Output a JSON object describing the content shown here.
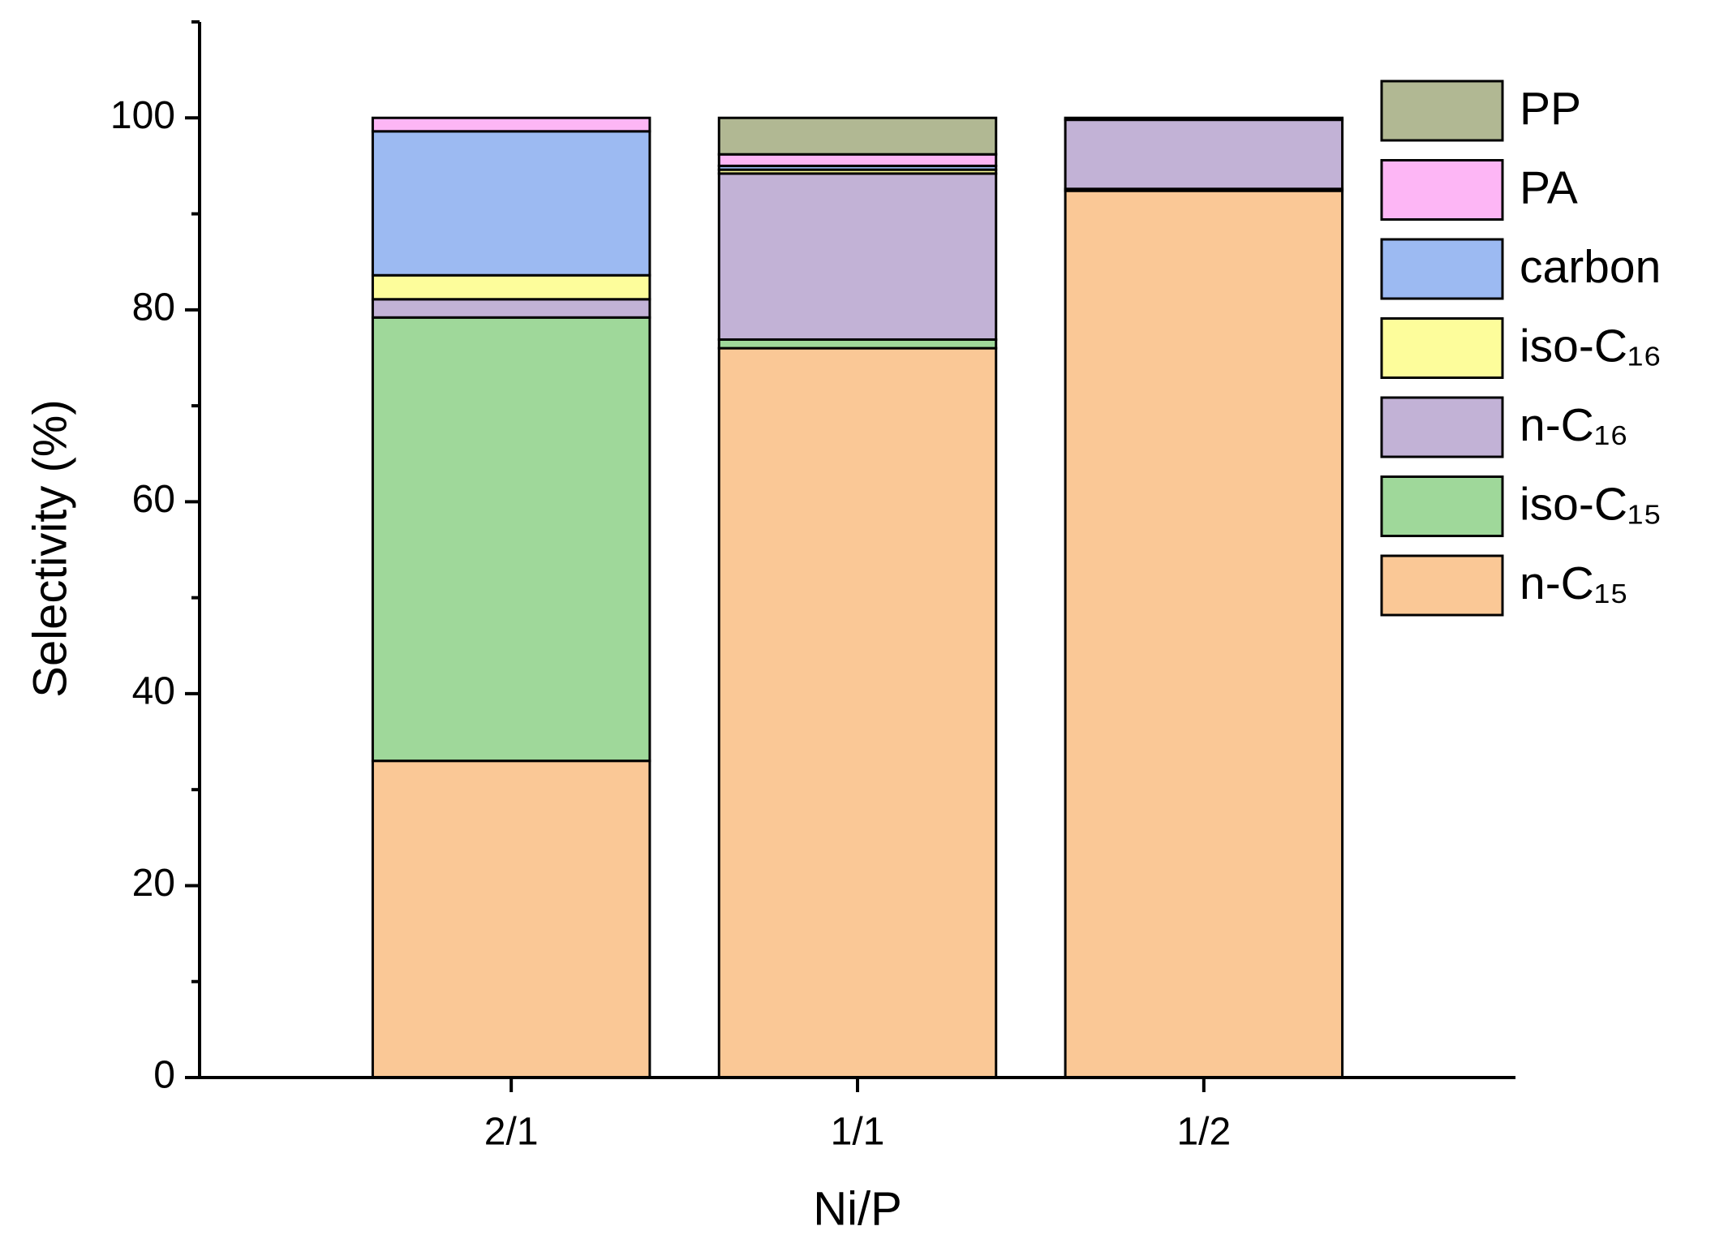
{
  "chart_data": {
    "type": "stacked_bar",
    "x_label": "Ni/P",
    "y_label": "Selectivity (%)",
    "categories": [
      "2/1",
      "1/1",
      "1/2"
    ],
    "series": [
      {
        "name": "n-C₁₅",
        "color": "#fac896",
        "values": [
          33.0,
          76.0,
          92.4
        ]
      },
      {
        "name": "iso-C₁₅",
        "color": "#9fd89a",
        "values": [
          46.2,
          0.9,
          0.2
        ]
      },
      {
        "name": "n-C₁₆",
        "color": "#c2b2d6",
        "values": [
          1.9,
          17.3,
          7.2
        ]
      },
      {
        "name": "iso-C₁₆",
        "color": "#fdfd9b",
        "values": [
          2.5,
          0.4,
          0
        ]
      },
      {
        "name": "carbon",
        "color": "#9cbaf2",
        "values": [
          15.0,
          0.4,
          0
        ]
      },
      {
        "name": "PA",
        "color": "#fdb6f5",
        "values": [
          1.4,
          1.2,
          0
        ]
      },
      {
        "name": "PP",
        "color": "#b1b893",
        "values": [
          0,
          3.8,
          0.2
        ]
      }
    ],
    "ylim": [
      0,
      110
    ],
    "yticks": [
      0,
      20,
      40,
      60,
      80,
      100
    ],
    "minor_yticks": [
      10,
      30,
      50,
      70,
      90,
      110
    ],
    "legend": "upper right"
  }
}
